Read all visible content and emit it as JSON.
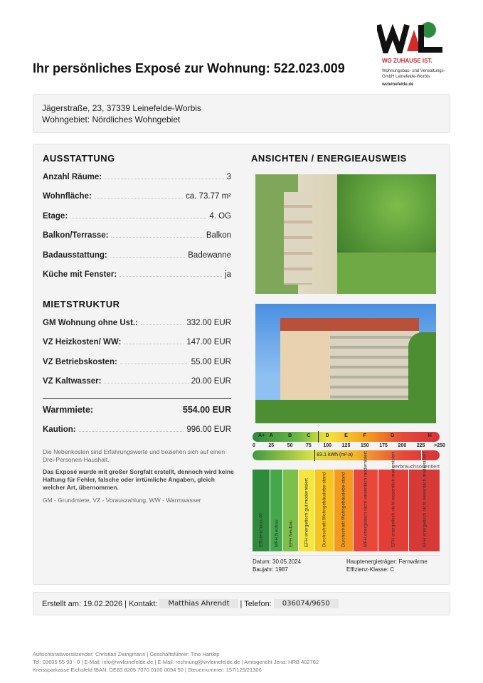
{
  "header": {
    "title": "Ihr persönliches Exposé zur Wohnung: 522.023.009",
    "logo": {
      "text": "WVL",
      "slogan": "WO ZUHAUSE IST.",
      "company": "Wohnungsbau- und Verwaltungs-GmbH Leinefelde-Worbis",
      "web": "wvleinefelde.de"
    }
  },
  "address": {
    "line1": "Jägerstraße, 23, 37339 Leinefelde-Worbis",
    "line2": "Wohngebiet: Nördliches Wohngebiet"
  },
  "ausstattung": {
    "heading": "AUSSTATTUNG",
    "rows": [
      {
        "k": "Anzahl Räume:",
        "v": "3"
      },
      {
        "k": "Wohnfläche:",
        "v": "ca. 73.77 m²"
      },
      {
        "k": "Etage:",
        "v": "4. OG"
      },
      {
        "k": "Balkon/Terrasse:",
        "v": "Balkon"
      },
      {
        "k": "Badausstattung:",
        "v": "Badewanne"
      },
      {
        "k": "Küche mit Fenster:",
        "v": "ja"
      }
    ]
  },
  "miete": {
    "heading": "MIETSTRUKTUR",
    "rows": [
      {
        "k": "GM Wohnung ohne Ust.:",
        "v": "332.00 EUR"
      },
      {
        "k": "VZ Heizkosten/ WW:",
        "v": "147.00 EUR"
      },
      {
        "k": "VZ Betriebskosten:",
        "v": "55.00 EUR"
      },
      {
        "k": "VZ Kaltwasser:",
        "v": "20.00 EUR"
      }
    ],
    "warm": {
      "k": "Warmmiete:",
      "v": "554.00 EUR"
    },
    "kaution": {
      "k": "Kaution:",
      "v": "996.00 EUR"
    }
  },
  "notes": {
    "n1": "Die Nebenkosten sind Erfahrungswerte und beziehen sich auf einen Drei-Personen-Haushalt.",
    "n2": "Das Exposé wurde mit großer Sorgfalt erstellt, dennoch wird keine Haftung für Fehler, falsche oder irrtümliche Angaben, gleich welcher Art, übernommen.",
    "n3": "GM - Grundmiete, VZ - Vorauszahlung, WW - Warmwasser"
  },
  "views": {
    "heading": "ANSICHTEN / ENERGIEAUSWEIS"
  },
  "energy": {
    "classes": [
      "A+",
      "A",
      "B",
      "C",
      "D",
      "E",
      "F",
      "G",
      "H"
    ],
    "ticks": [
      "0",
      "25",
      "50",
      "75",
      "100",
      "125",
      "150",
      "175",
      "200",
      "225",
      ">250"
    ],
    "value": 83.1,
    "value_label": "83.1 kWh (m²·a)",
    "type": "verbrauchsorientiert",
    "categories": [
      "Effizienzhaus 40",
      "MFH Neubau",
      "EFH Neubau",
      "EFH energetisch gut modernisiert",
      "Durchschnitt Wohngebäudebe-stand",
      "Durchschnitt Wohngebäudebe-stand",
      "MFH energetisch nicht wesentlich modernisiert",
      "EFH energetisch nicht wesentlich modernisiert",
      "EFH energetisch nicht wesentlich modernisiert"
    ],
    "cat_colors": [
      "#2f8a3c",
      "#44a84b",
      "#7dbf4b",
      "#f6e63e",
      "#f8c51e",
      "#f49b1d",
      "#e9473b",
      "#e33d37",
      "#d73a36"
    ],
    "datum": "Datum: 30.05.2024",
    "baujahr": "Baujahr: 1987",
    "traeger": "Hauptenergieträger: Fernwärme",
    "klasse": "Effizienz-Klasse: C"
  },
  "contact": {
    "created": "Erstellt am: 19.02.2026 | Kontakt:",
    "name": "Matthias Ahrendt",
    "tel_label": "| Telefon:",
    "tel": "036074/9650"
  },
  "footer": {
    "l1": "Aufsichtsratsvorsitzender: Christian Zwingmann | Geschäftsführer: Tino Hartlep",
    "l2": "Tel: 03605 55 93 - 0 | E-Mail: info@wvleinefelde.de | E-Mail: rechnung@wvleinefelde.de | Amtsgericht Jena: HRB 402782",
    "l3": "Kreissparkasse Eichsfeld IBAN: DE83 8205 7070 0100 0094 50 | Steuernummer: 157/125/21306"
  }
}
